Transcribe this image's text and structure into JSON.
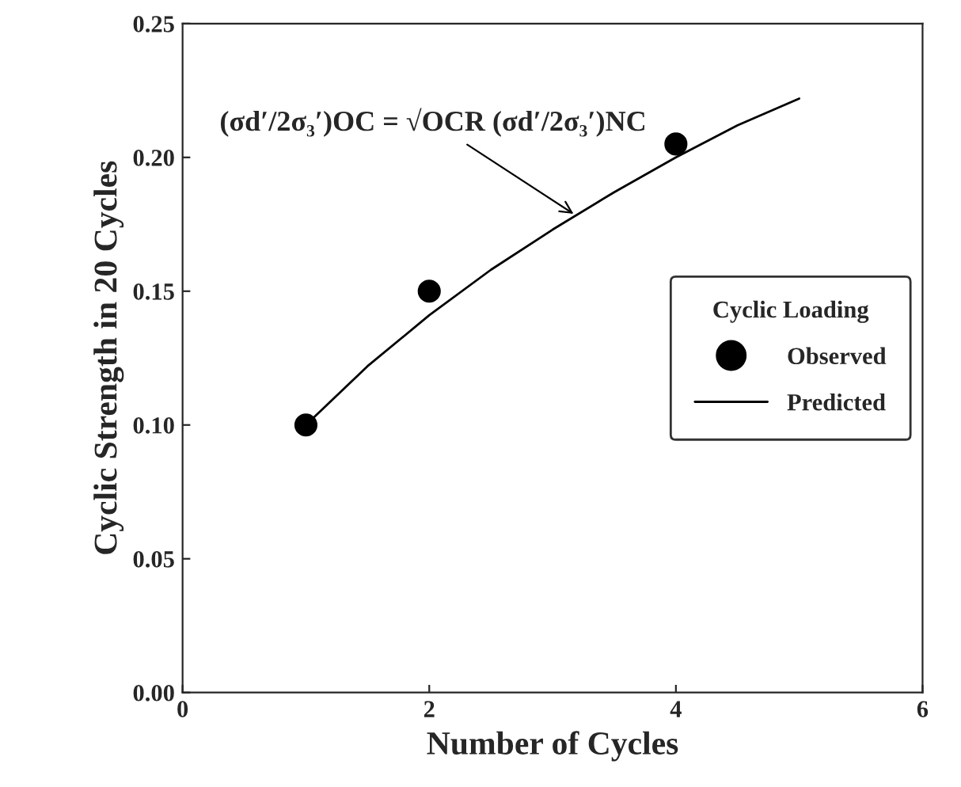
{
  "chart_data": {
    "type": "scatter",
    "xlabel": "Number of Cycles",
    "ylabel": "Cyclic Strength in 20 Cycles",
    "legend_title": "Cyclic Loading",
    "series": [
      {
        "name": "Observed",
        "color": "#000000",
        "marker": "circle",
        "x": [
          1,
          2,
          4
        ],
        "values": [
          0.1,
          0.15,
          0.205
        ]
      },
      {
        "name": "Predicted",
        "type": "line",
        "color": "#000000",
        "marker": "none",
        "x": [
          1,
          1.5,
          2,
          2.5,
          3,
          3.5,
          4,
          4.5,
          5
        ],
        "values": [
          0.1,
          0.122,
          0.141,
          0.158,
          0.173,
          0.187,
          0.2,
          0.212,
          0.222
        ]
      }
    ],
    "xlim": [
      0,
      6
    ],
    "ylim": [
      0,
      0.25
    ],
    "xticks": [
      0,
      2,
      4,
      6
    ],
    "yticks": [
      {
        "value": 0,
        "label": "0.00"
      },
      {
        "value": 0.05,
        "label": "0.05"
      },
      {
        "value": 0.1,
        "label": "0.10"
      },
      {
        "value": 0.15,
        "label": "0.15"
      },
      {
        "value": 0.2,
        "label": "0.20"
      },
      {
        "value": 0.25,
        "label": "0.25"
      }
    ],
    "grid": false,
    "legend": "right",
    "annotations": [
      {
        "text": "(σd′/2σ₃′)OC = √OCR (σd′/2σ₃′)NC",
        "x": 3.2,
        "y": 0.178
      }
    ]
  }
}
